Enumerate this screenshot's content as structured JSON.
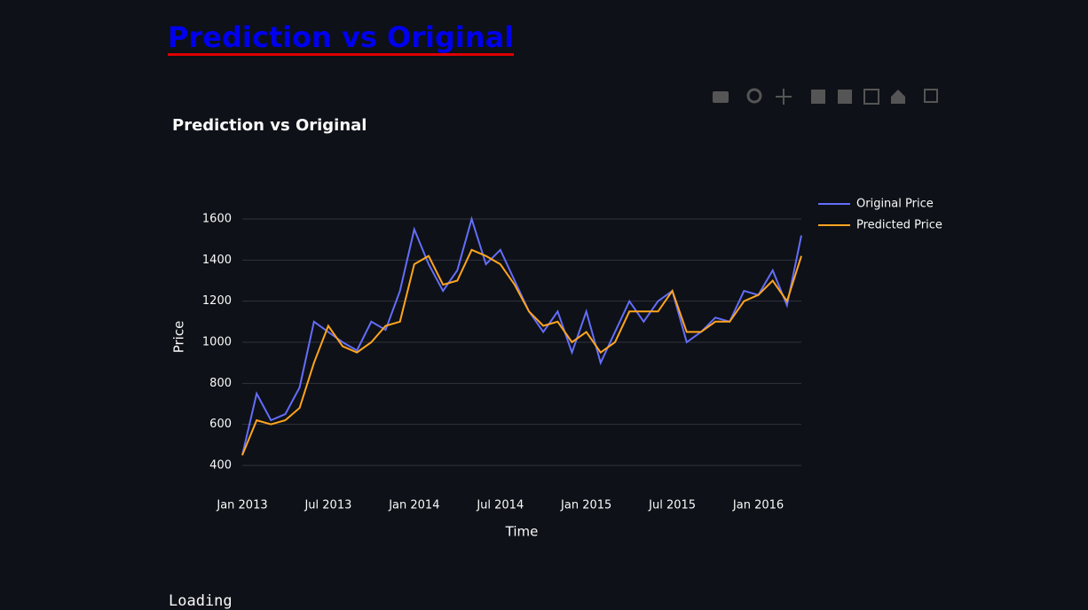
{
  "page": {
    "heading": "Prediction vs Original",
    "status": "Loading"
  },
  "chart_data": {
    "type": "line",
    "title": "Prediction vs Original",
    "xlabel": "Time",
    "ylabel": "Price",
    "x": [
      "2013-01",
      "2013-02",
      "2013-03",
      "2013-04",
      "2013-05",
      "2013-06",
      "2013-07",
      "2013-08",
      "2013-09",
      "2013-10",
      "2013-11",
      "2013-12",
      "2014-01",
      "2014-02",
      "2014-03",
      "2014-04",
      "2014-05",
      "2014-06",
      "2014-07",
      "2014-08",
      "2014-09",
      "2014-10",
      "2014-11",
      "2014-12",
      "2015-01",
      "2015-02",
      "2015-03",
      "2015-04",
      "2015-05",
      "2015-06",
      "2015-07",
      "2015-08",
      "2015-09",
      "2015-10",
      "2015-11",
      "2015-12",
      "2016-01",
      "2016-02",
      "2016-03",
      "2016-04"
    ],
    "series": [
      {
        "name": "Original Price",
        "color": "#636efa",
        "values": [
          450,
          750,
          620,
          650,
          780,
          1100,
          1050,
          1000,
          960,
          1100,
          1060,
          1250,
          1550,
          1380,
          1250,
          1350,
          1600,
          1380,
          1450,
          1300,
          1150,
          1050,
          1150,
          950,
          1150,
          900,
          1050,
          1200,
          1100,
          1200,
          1250,
          1000,
          1050,
          1120,
          1100,
          1250,
          1230,
          1350,
          1180,
          1520
        ]
      },
      {
        "name": "Predicted Price",
        "color": "#ffa51f",
        "values": [
          450,
          620,
          600,
          620,
          680,
          900,
          1080,
          980,
          950,
          1000,
          1080,
          1100,
          1380,
          1420,
          1280,
          1300,
          1450,
          1420,
          1380,
          1280,
          1150,
          1080,
          1100,
          1000,
          1050,
          950,
          1000,
          1150,
          1150,
          1150,
          1250,
          1050,
          1050,
          1100,
          1100,
          1200,
          1230,
          1300,
          1200,
          1420
        ]
      }
    ],
    "xlim": [
      "2013-01",
      "2016-04"
    ],
    "xticks": [
      {
        "value": "2013-01",
        "label": "Jan 2013"
      },
      {
        "value": "2013-07",
        "label": "Jul 2013"
      },
      {
        "value": "2014-01",
        "label": "Jan 2014"
      },
      {
        "value": "2014-07",
        "label": "Jul 2014"
      },
      {
        "value": "2015-01",
        "label": "Jan 2015"
      },
      {
        "value": "2015-07",
        "label": "Jul 2015"
      },
      {
        "value": "2016-01",
        "label": "Jan 2016"
      }
    ],
    "ylim": [
      320,
      1680
    ],
    "yticks": [
      400,
      600,
      800,
      1000,
      1200,
      1400,
      1600
    ],
    "grid": true,
    "legend": "top-right"
  }
}
